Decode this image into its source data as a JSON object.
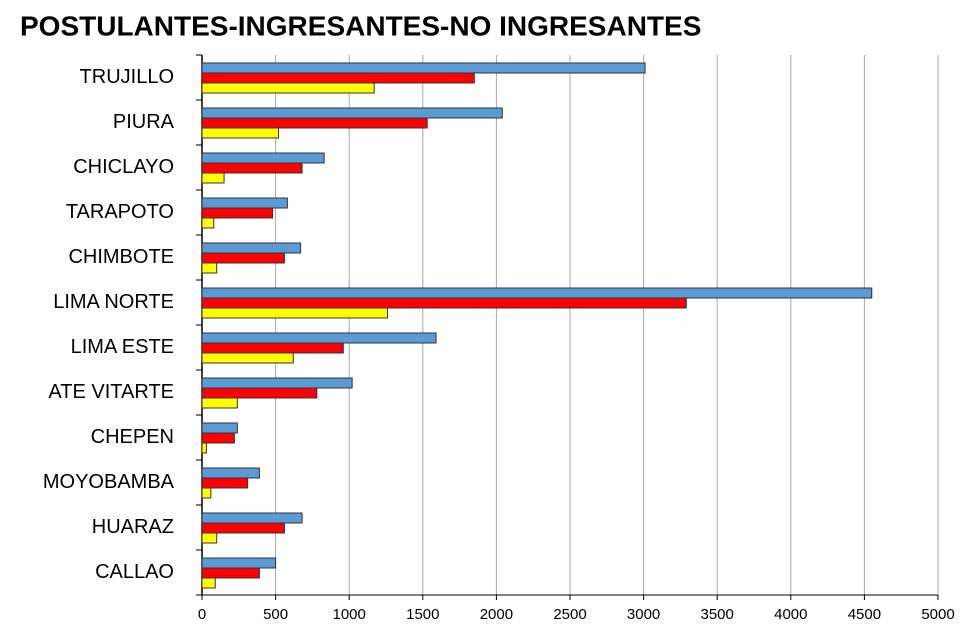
{
  "chart_data": {
    "type": "hbar",
    "title": "POSTULANTES-INGRESANTES-NO INGRESANTES",
    "categories": [
      "TRUJILLO",
      "PIURA",
      "CHICLAYO",
      "TARAPOTO",
      "CHIMBOTE",
      "LIMA NORTE",
      "LIMA ESTE",
      "ATE VITARTE",
      "CHEPEN",
      "MOYOBAMBA",
      "HUARAZ",
      "CALLAO"
    ],
    "series": [
      {
        "color": "#5b9bd5",
        "values": [
          3010,
          2040,
          830,
          580,
          670,
          4550,
          1590,
          1020,
          240,
          390,
          680,
          500
        ]
      },
      {
        "color": "#ff0000",
        "values": [
          1850,
          1530,
          680,
          480,
          560,
          3290,
          960,
          780,
          220,
          310,
          560,
          390
        ]
      },
      {
        "color": "#ffff00",
        "values": [
          1170,
          520,
          150,
          80,
          100,
          1260,
          620,
          240,
          30,
          60,
          100,
          90
        ]
      }
    ],
    "xlim": [
      0,
      5000
    ],
    "xticks": [
      0,
      500,
      1000,
      1500,
      2000,
      2500,
      3000,
      3500,
      4000,
      4500,
      5000
    ],
    "grid": true
  }
}
